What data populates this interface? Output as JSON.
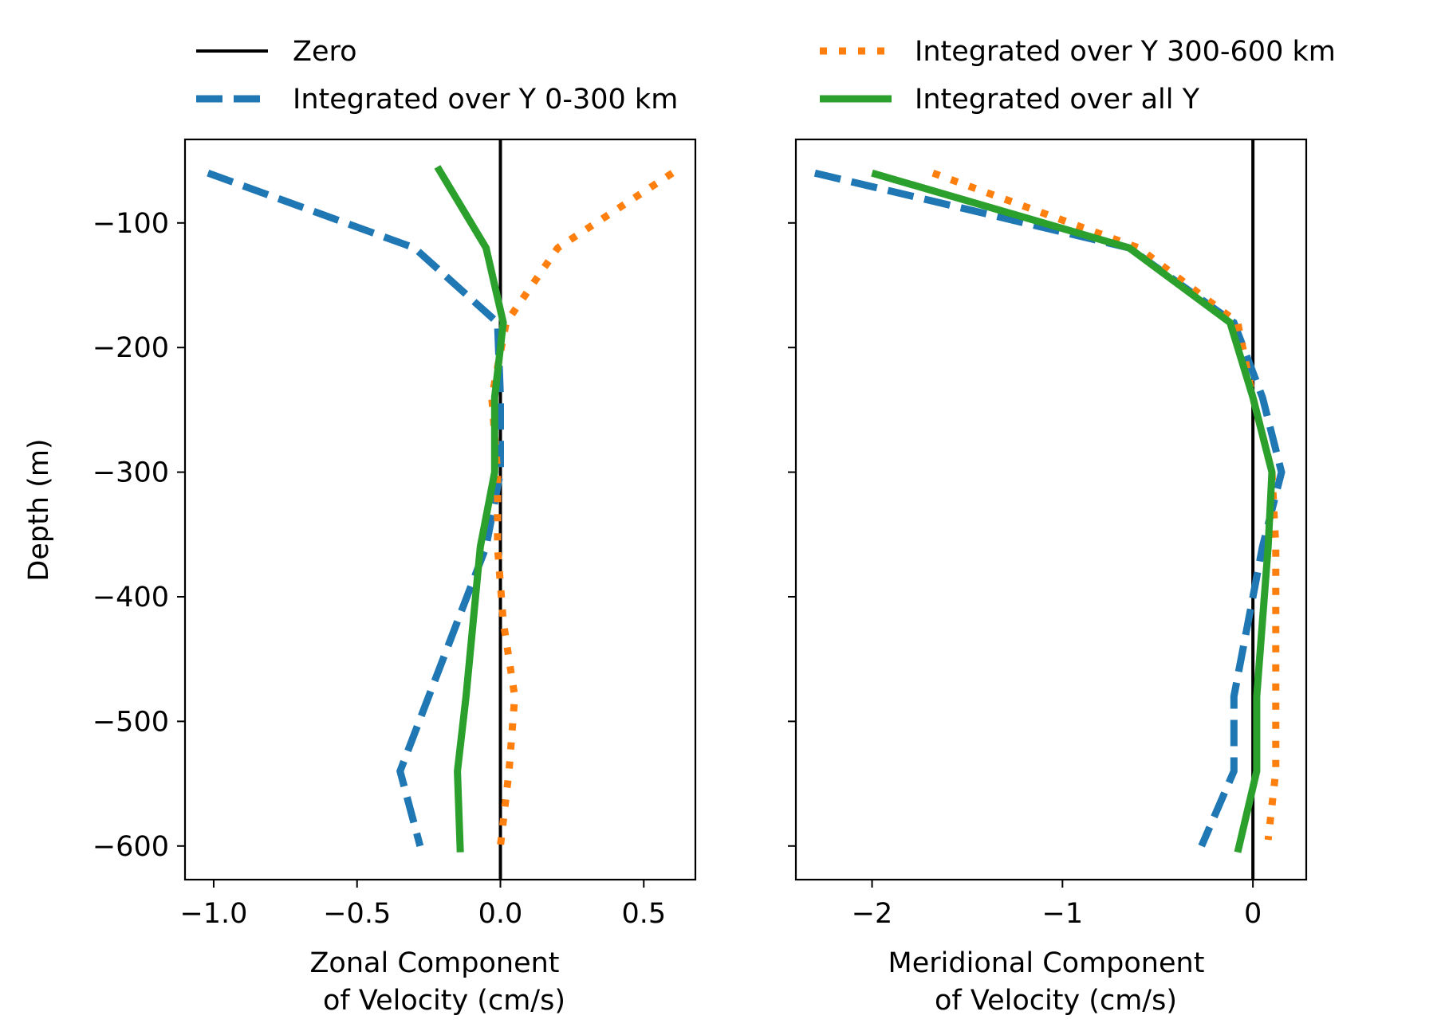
{
  "legend": {
    "entries": [
      {
        "label": "Zero",
        "color": "#000000",
        "style": "solid"
      },
      {
        "label": "Integrated over Y 0-300 km",
        "color": "#1f77b4",
        "style": "dashed"
      },
      {
        "label": "Integrated over Y 300-600 km",
        "color": "#ff7f0e",
        "style": "dotted"
      },
      {
        "label": "Integrated over all Y",
        "color": "#2ca02c",
        "style": "solid"
      }
    ]
  },
  "chart_data": [
    {
      "type": "line",
      "xlabel": [
        "Zonal Component",
        "of Velocity (cm/s)"
      ],
      "ylabel": "Depth (m)",
      "xlim": [
        -1.1,
        0.68
      ],
      "ylim": [
        -627,
        -33
      ],
      "xticks": [
        -1.0,
        -0.5,
        0.0,
        0.5
      ],
      "xticklabels": [
        "−1.0",
        "−0.5",
        "0.0",
        "0.5"
      ],
      "yticks": [
        -100,
        -200,
        -300,
        -400,
        -500,
        -600
      ],
      "yticklabels": [
        "−100",
        "−200",
        "−300",
        "−400",
        "−500",
        "−600"
      ],
      "show_yticklabels": true,
      "grid": false,
      "zero_line": 0,
      "series": [
        {
          "name": "Integrated over Y 0-300 km",
          "color": "#1f77b4",
          "style": "dashed",
          "x": [
            -1.02,
            -0.3,
            -0.01,
            0.0,
            0.0,
            -0.05,
            -0.25,
            -0.35,
            -0.28
          ],
          "y": [
            -60,
            -120,
            -180,
            -240,
            -300,
            -360,
            -480,
            -540,
            -600
          ]
        },
        {
          "name": "Integrated over Y 300-600 km",
          "color": "#ff7f0e",
          "style": "dotted",
          "x": [
            0.6,
            0.2,
            0.02,
            -0.03,
            -0.01,
            -0.01,
            0.01,
            0.05,
            0.03,
            0.0
          ],
          "y": [
            -60,
            -120,
            -180,
            -240,
            -300,
            -360,
            -420,
            -480,
            -540,
            -600
          ]
        },
        {
          "name": "Integrated over all Y",
          "color": "#2ca02c",
          "style": "solid",
          "x": [
            -0.22,
            -0.05,
            0.01,
            -0.02,
            -0.02,
            -0.07,
            -0.12,
            -0.15,
            -0.14
          ],
          "y": [
            -55,
            -120,
            -180,
            -240,
            -300,
            -360,
            -480,
            -540,
            -605
          ]
        }
      ]
    },
    {
      "type": "line",
      "xlabel": [
        "Meridional Component",
        "of Velocity (cm/s)"
      ],
      "ylabel": "",
      "xlim": [
        -2.4,
        0.28
      ],
      "ylim": [
        -627,
        -33
      ],
      "xticks": [
        -2,
        -1,
        0
      ],
      "xticklabels": [
        "−2",
        "−1",
        "0"
      ],
      "yticks": [
        -100,
        -200,
        -300,
        -400,
        -500,
        -600
      ],
      "yticklabels": [],
      "show_yticklabels": false,
      "grid": false,
      "zero_line": 0,
      "series": [
        {
          "name": "Integrated over Y 0-300 km",
          "color": "#1f77b4",
          "style": "dashed",
          "x": [
            -2.3,
            -0.65,
            -0.1,
            0.05,
            0.15,
            0.05,
            -0.1,
            -0.1,
            -0.27
          ],
          "y": [
            -60,
            -120,
            -180,
            -240,
            -300,
            -360,
            -480,
            -540,
            -600
          ]
        },
        {
          "name": "Integrated over Y 300-600 km",
          "color": "#ff7f0e",
          "style": "dotted",
          "x": [
            -1.68,
            -0.6,
            -0.08,
            0.0,
            0.1,
            0.12,
            0.12,
            0.12,
            0.12,
            0.08
          ],
          "y": [
            -60,
            -120,
            -180,
            -240,
            -300,
            -360,
            -420,
            -480,
            -540,
            -595
          ]
        },
        {
          "name": "Integrated over all Y",
          "color": "#2ca02c",
          "style": "solid",
          "x": [
            -2.0,
            -0.65,
            -0.12,
            0.0,
            0.1,
            0.08,
            0.02,
            0.02,
            -0.08
          ],
          "y": [
            -60,
            -120,
            -180,
            -240,
            -300,
            -360,
            -480,
            -540,
            -605
          ]
        }
      ]
    }
  ]
}
